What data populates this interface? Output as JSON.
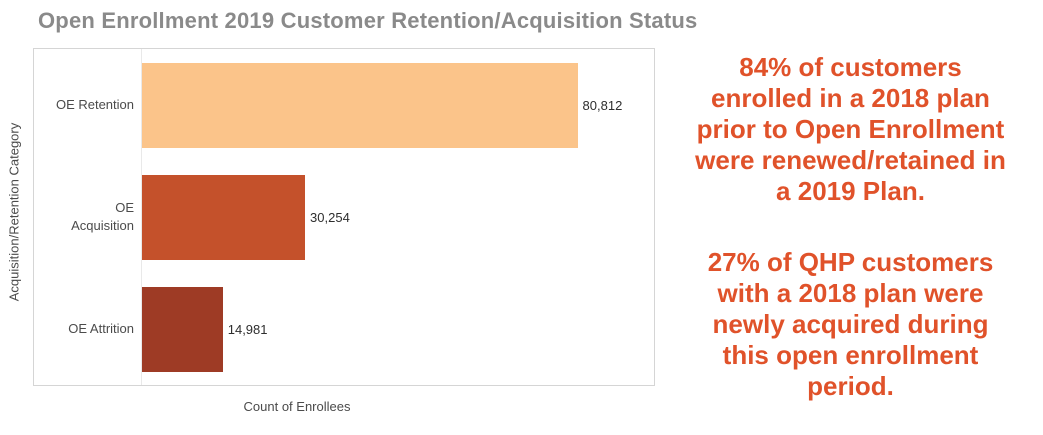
{
  "title": "Open Enrollment 2019 Customer Retention/Acquisition Status",
  "chart_data": {
    "type": "bar",
    "orientation": "horizontal",
    "title": "Open Enrollment 2019 Customer Retention/Acquisition Status",
    "categories": [
      "OE Retention",
      "OE Acquisition",
      "OE Attrition"
    ],
    "category_labels": [
      "OE Retention",
      "OE\nAcquisition",
      "OE Attrition"
    ],
    "values": [
      80812,
      30254,
      14981
    ],
    "value_labels": [
      "80,812",
      "30,254",
      "14,981"
    ],
    "bar_colors": [
      "#FBC48A",
      "#C4512B",
      "#9E3B25"
    ],
    "xlabel": "Count of Enrollees",
    "ylabel": "Acquisition/Retention Category",
    "xlim": [
      0,
      95000
    ],
    "grid": false,
    "legend": false
  },
  "annotations": {
    "color": "#E0522A",
    "retention_callout": "84% of customers\nenrolled in a 2018 plan\nprior to Open Enrollment\nwere renewed/retained in\na 2019 Plan.",
    "acquisition_callout": "27% of QHP customers\nwith a 2018 plan were\nnewly acquired during\nthis open enrollment\nperiod."
  },
  "colors": {
    "title_text": "#8A8A8A",
    "axis_text": "#4B4B4B",
    "value_text": "#2E2E2E",
    "frame_border": "#D5D5D5"
  }
}
